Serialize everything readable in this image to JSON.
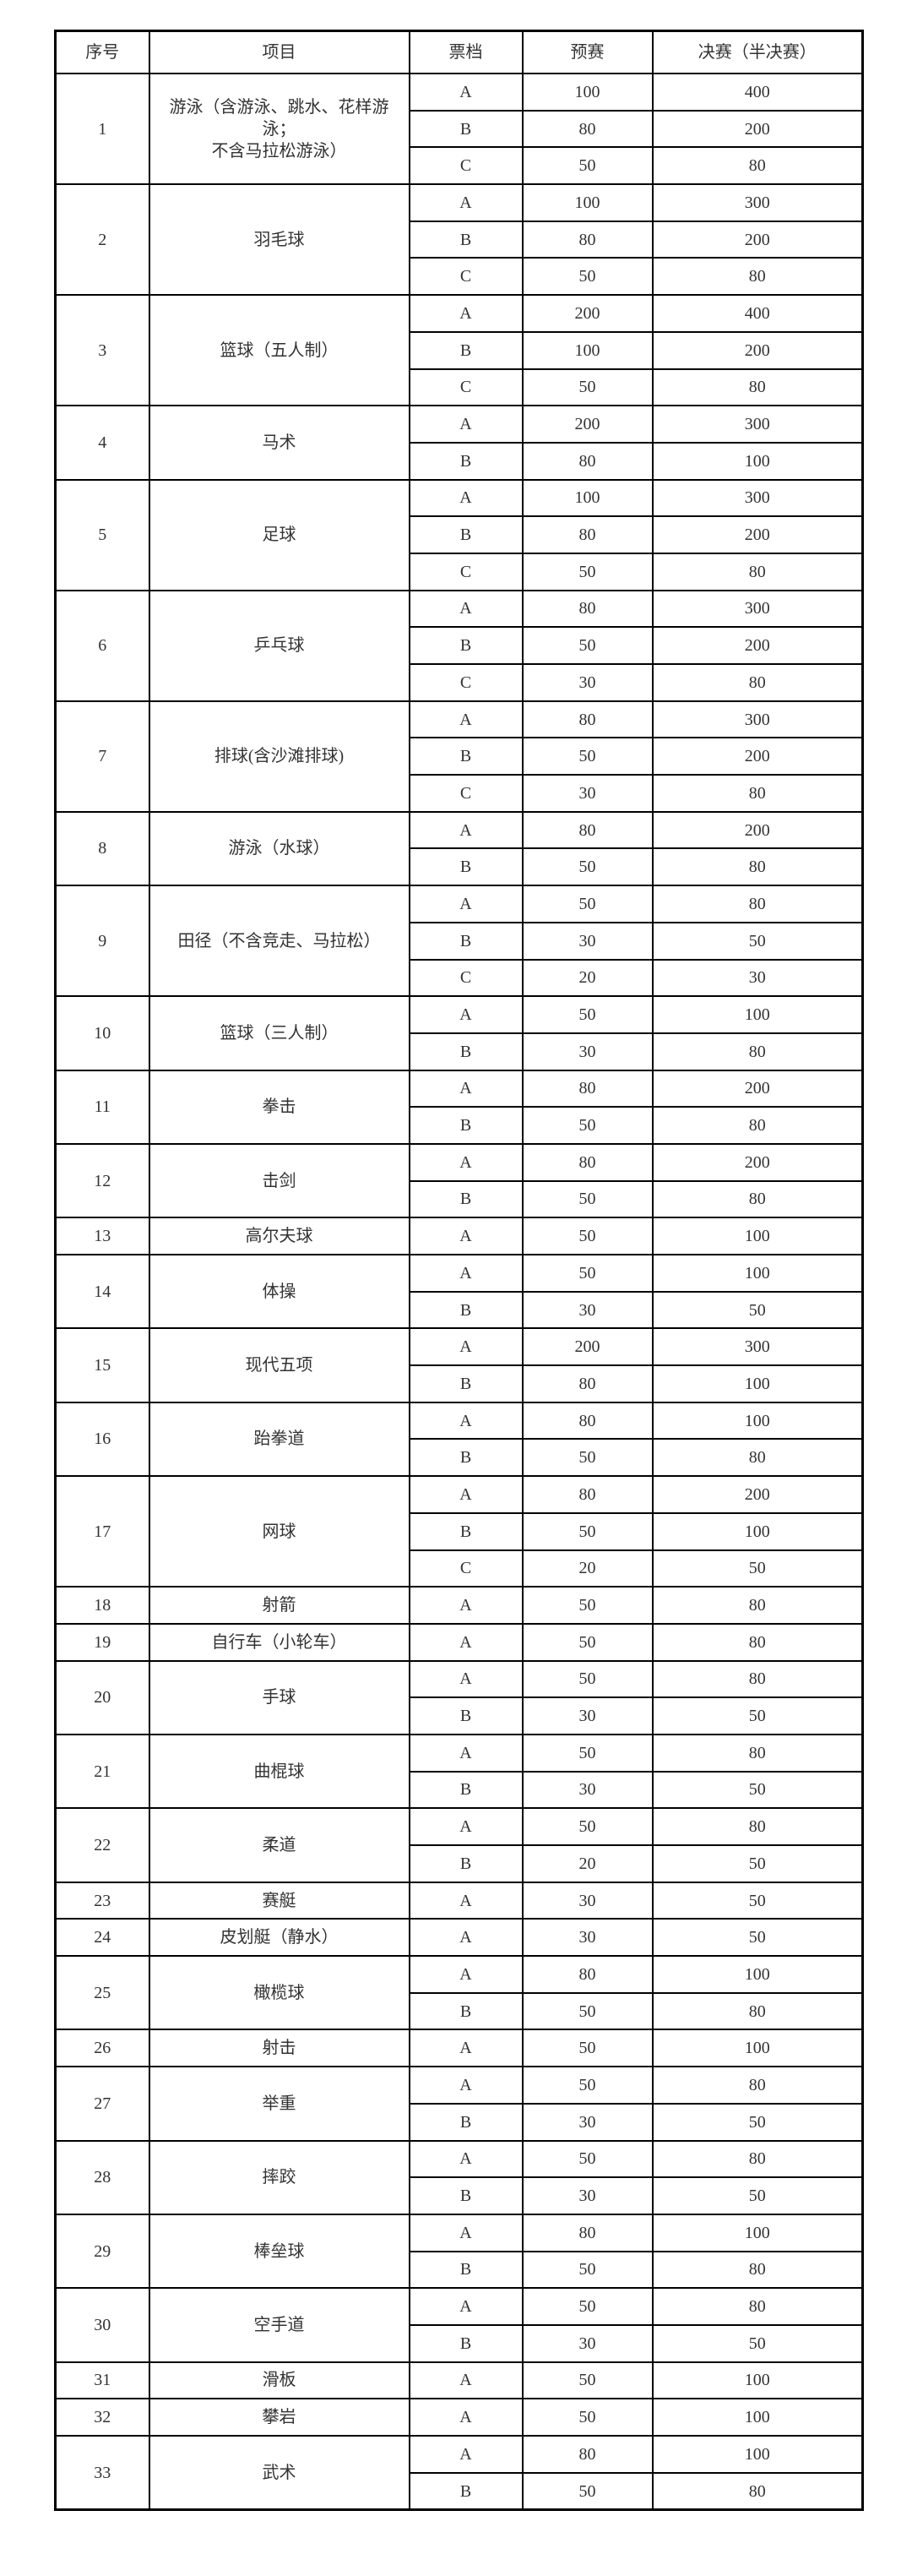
{
  "headers": [
    "序号",
    "项目",
    "票档",
    "预赛",
    "决赛（半决赛）"
  ],
  "groups": [
    {
      "no": "1",
      "item": "游泳（含游泳、跳水、花样游泳；\n不含马拉松游泳）",
      "tiers": [
        [
          "A",
          "100",
          "400"
        ],
        [
          "B",
          "80",
          "200"
        ],
        [
          "C",
          "50",
          "80"
        ]
      ]
    },
    {
      "no": "2",
      "item": "羽毛球",
      "tiers": [
        [
          "A",
          "100",
          "300"
        ],
        [
          "B",
          "80",
          "200"
        ],
        [
          "C",
          "50",
          "80"
        ]
      ]
    },
    {
      "no": "3",
      "item": "篮球（五人制）",
      "tiers": [
        [
          "A",
          "200",
          "400"
        ],
        [
          "B",
          "100",
          "200"
        ],
        [
          "C",
          "50",
          "80"
        ]
      ]
    },
    {
      "no": "4",
      "item": "马术",
      "tiers": [
        [
          "A",
          "200",
          "300"
        ],
        [
          "B",
          "80",
          "100"
        ]
      ]
    },
    {
      "no": "5",
      "item": "足球",
      "tiers": [
        [
          "A",
          "100",
          "300"
        ],
        [
          "B",
          "80",
          "200"
        ],
        [
          "C",
          "50",
          "80"
        ]
      ]
    },
    {
      "no": "6",
      "item": "乒乓球",
      "tiers": [
        [
          "A",
          "80",
          "300"
        ],
        [
          "B",
          "50",
          "200"
        ],
        [
          "C",
          "30",
          "80"
        ]
      ]
    },
    {
      "no": "7",
      "item": "排球(含沙滩排球)",
      "tiers": [
        [
          "A",
          "80",
          "300"
        ],
        [
          "B",
          "50",
          "200"
        ],
        [
          "C",
          "30",
          "80"
        ]
      ]
    },
    {
      "no": "8",
      "item": "游泳（水球）",
      "tiers": [
        [
          "A",
          "80",
          "200"
        ],
        [
          "B",
          "50",
          "80"
        ]
      ]
    },
    {
      "no": "9",
      "item": "田径（不含竞走、马拉松）",
      "tiers": [
        [
          "A",
          "50",
          "80"
        ],
        [
          "B",
          "30",
          "50"
        ],
        [
          "C",
          "20",
          "30"
        ]
      ]
    },
    {
      "no": "10",
      "item": "篮球（三人制）",
      "tiers": [
        [
          "A",
          "50",
          "100"
        ],
        [
          "B",
          "30",
          "80"
        ]
      ]
    },
    {
      "no": "11",
      "item": "拳击",
      "tiers": [
        [
          "A",
          "80",
          "200"
        ],
        [
          "B",
          "50",
          "80"
        ]
      ]
    },
    {
      "no": "12",
      "item": "击剑",
      "tiers": [
        [
          "A",
          "80",
          "200"
        ],
        [
          "B",
          "50",
          "80"
        ]
      ]
    },
    {
      "no": "13",
      "item": "高尔夫球",
      "tiers": [
        [
          "A",
          "50",
          "100"
        ]
      ]
    },
    {
      "no": "14",
      "item": "体操",
      "tiers": [
        [
          "A",
          "50",
          "100"
        ],
        [
          "B",
          "30",
          "50"
        ]
      ]
    },
    {
      "no": "15",
      "item": "现代五项",
      "tiers": [
        [
          "A",
          "200",
          "300"
        ],
        [
          "B",
          "80",
          "100"
        ]
      ]
    },
    {
      "no": "16",
      "item": "跆拳道",
      "tiers": [
        [
          "A",
          "80",
          "100"
        ],
        [
          "B",
          "50",
          "80"
        ]
      ]
    },
    {
      "no": "17",
      "item": "网球",
      "tiers": [
        [
          "A",
          "80",
          "200"
        ],
        [
          "B",
          "50",
          "100"
        ],
        [
          "C",
          "20",
          "50"
        ]
      ]
    },
    {
      "no": "18",
      "item": "射箭",
      "tiers": [
        [
          "A",
          "50",
          "80"
        ]
      ]
    },
    {
      "no": "19",
      "item": "自行车（小轮车）",
      "tiers": [
        [
          "A",
          "50",
          "80"
        ]
      ]
    },
    {
      "no": "20",
      "item": "手球",
      "tiers": [
        [
          "A",
          "50",
          "80"
        ],
        [
          "B",
          "30",
          "50"
        ]
      ]
    },
    {
      "no": "21",
      "item": "曲棍球",
      "tiers": [
        [
          "A",
          "50",
          "80"
        ],
        [
          "B",
          "30",
          "50"
        ]
      ]
    },
    {
      "no": "22",
      "item": "柔道",
      "tiers": [
        [
          "A",
          "50",
          "80"
        ],
        [
          "B",
          "20",
          "50"
        ]
      ]
    },
    {
      "no": "23",
      "item": "赛艇",
      "tiers": [
        [
          "A",
          "30",
          "50"
        ]
      ]
    },
    {
      "no": "24",
      "item": "皮划艇（静水）",
      "tiers": [
        [
          "A",
          "30",
          "50"
        ]
      ]
    },
    {
      "no": "25",
      "item": "橄榄球",
      "tiers": [
        [
          "A",
          "80",
          "100"
        ],
        [
          "B",
          "50",
          "80"
        ]
      ]
    },
    {
      "no": "26",
      "item": "射击",
      "tiers": [
        [
          "A",
          "50",
          "100"
        ]
      ]
    },
    {
      "no": "27",
      "item": "举重",
      "tiers": [
        [
          "A",
          "50",
          "80"
        ],
        [
          "B",
          "30",
          "50"
        ]
      ]
    },
    {
      "no": "28",
      "item": "摔跤",
      "tiers": [
        [
          "A",
          "50",
          "80"
        ],
        [
          "B",
          "30",
          "50"
        ]
      ]
    },
    {
      "no": "29",
      "item": "棒垒球",
      "tiers": [
        [
          "A",
          "80",
          "100"
        ],
        [
          "B",
          "50",
          "80"
        ]
      ]
    },
    {
      "no": "30",
      "item": "空手道",
      "tiers": [
        [
          "A",
          "50",
          "80"
        ],
        [
          "B",
          "30",
          "50"
        ]
      ]
    },
    {
      "no": "31",
      "item": "滑板",
      "tiers": [
        [
          "A",
          "50",
          "100"
        ]
      ]
    },
    {
      "no": "32",
      "item": "攀岩",
      "tiers": [
        [
          "A",
          "50",
          "100"
        ]
      ]
    },
    {
      "no": "33",
      "item": "武术",
      "tiers": [
        [
          "A",
          "80",
          "100"
        ],
        [
          "B",
          "50",
          "80"
        ]
      ]
    }
  ]
}
